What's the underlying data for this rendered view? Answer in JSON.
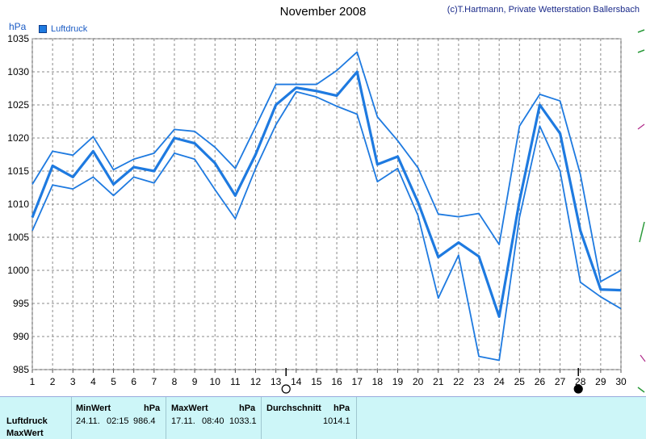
{
  "title": "November 2008",
  "copyright": "(c)T.Hartmann, Private Wetterstation Ballersbach",
  "unit": "hPa",
  "legend": {
    "label": "Luftdruck",
    "color": "#1e7ae0"
  },
  "chart_data": {
    "type": "line",
    "title": "November 2008",
    "ylabel": "hPa",
    "x": [
      1,
      2,
      3,
      4,
      5,
      6,
      7,
      8,
      9,
      10,
      11,
      12,
      13,
      14,
      15,
      16,
      17,
      18,
      19,
      20,
      21,
      22,
      23,
      24,
      25,
      26,
      27,
      28,
      29,
      30
    ],
    "ylim": [
      985,
      1035
    ],
    "yticks": [
      985,
      990,
      995,
      1000,
      1005,
      1010,
      1015,
      1020,
      1025,
      1030,
      1035
    ],
    "grid": true,
    "legend_position": "top-left",
    "series": [
      {
        "name": "Luftdruck",
        "role": "mean",
        "values": [
          1008,
          1015.8,
          1014.1,
          1018,
          1013,
          1015.6,
          1015,
          1020,
          1019.2,
          1016.2,
          1011.3,
          1017.5,
          1025,
          1027.6,
          1027.1,
          1026.4,
          1030,
          1016,
          1017.2,
          1010.3,
          1002,
          1004.2,
          1002.1,
          993,
          1010.5,
          1025,
          1020.7,
          1006,
          997.1,
          997
        ]
      },
      {
        "role": "max",
        "values": [
          1013,
          1018,
          1017.4,
          1020.2,
          1015.2,
          1016.8,
          1017.7,
          1021.3,
          1021,
          1018.6,
          1015.4,
          1021.7,
          1028.1,
          1028.1,
          1028.1,
          1030.2,
          1033,
          1023.2,
          1019.6,
          1015.5,
          1008.5,
          1008.1,
          1008.6,
          1003.9,
          1021.8,
          1026.6,
          1025.6,
          1014.5,
          998.3,
          1000
        ]
      },
      {
        "role": "min",
        "values": [
          1006,
          1012.9,
          1012.3,
          1014.1,
          1011.3,
          1014.1,
          1013.2,
          1017.7,
          1016.8,
          1012.2,
          1007.8,
          1015.4,
          1022,
          1027,
          1026.2,
          1024.8,
          1023.6,
          1013.4,
          1015.4,
          1008.3,
          995.8,
          1002.3,
          987,
          986.4,
          1008,
          1021.8,
          1015,
          998.2,
          996,
          994.2
        ]
      }
    ],
    "markers": [
      {
        "x": 13.5,
        "symbol": "open-circle"
      },
      {
        "x": 27.9,
        "symbol": "filled-circle"
      }
    ]
  },
  "stats": {
    "row_label": "Luftdruck",
    "row_label2": "MaxWert",
    "min_header": "MinWert",
    "max_header": "MaxWert",
    "avg_header": "Durchschnitt",
    "unit": "hPa",
    "min_date": "24.11.",
    "min_time": "02:15",
    "min_value": "986.4",
    "max_date": "17.11.",
    "max_time": "08:40",
    "max_value": "1033.1",
    "avg_value": "1014.1"
  }
}
